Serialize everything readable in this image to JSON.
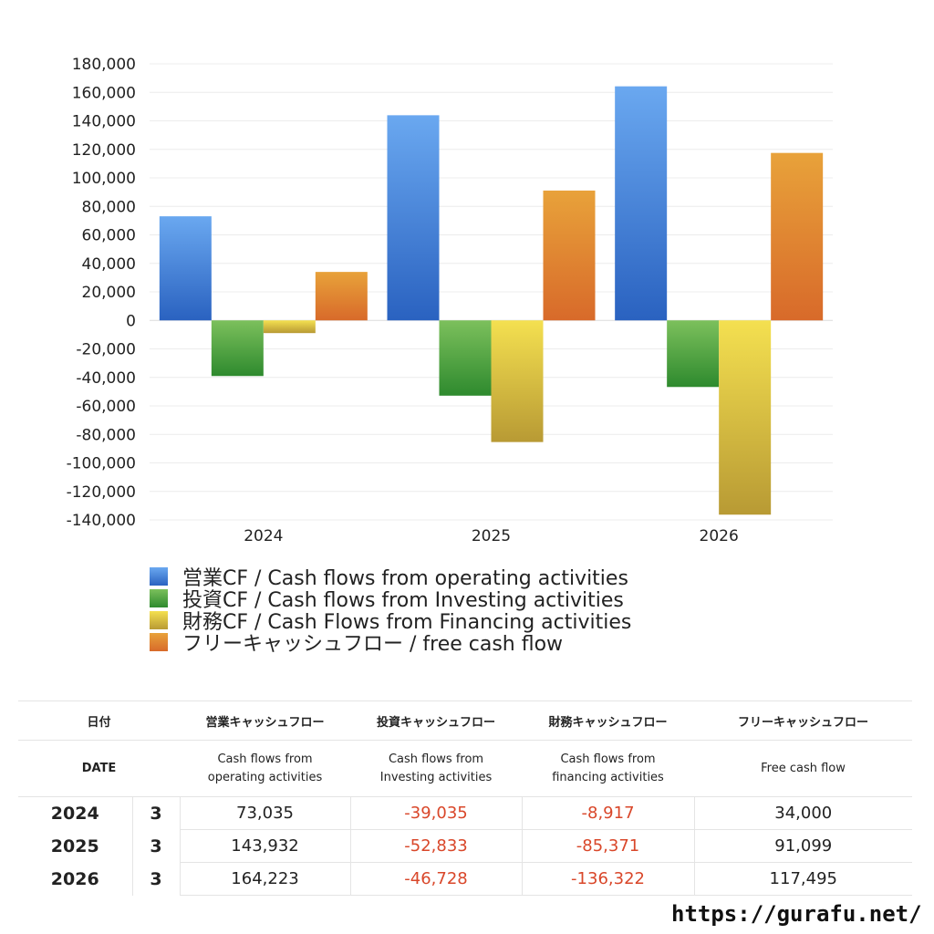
{
  "chart_data": {
    "type": "bar",
    "categories": [
      "2024",
      "2025",
      "2026"
    ],
    "series": [
      {
        "name": "営業CF / Cash flows from operating activities",
        "values": [
          73035,
          143932,
          164223
        ],
        "color_top": "#6aa8f0",
        "color_bottom": "#2a62c0"
      },
      {
        "name": "投資CF / Cash flows from Investing activities",
        "values": [
          -39035,
          -52833,
          -46728
        ],
        "color_top": "#7cc05c",
        "color_bottom": "#2e8a2e"
      },
      {
        "name": "財務CF / Cash Flows from Financing activities",
        "values": [
          -8917,
          -85371,
          -136322
        ],
        "color_top": "#f4e050",
        "color_bottom": "#b89a34"
      },
      {
        "name": "フリーキャッシュフロー / free cash flow",
        "values": [
          34000,
          91099,
          117495
        ],
        "color_top": "#e8a23a",
        "color_bottom": "#d86a2a"
      }
    ],
    "ylim": [
      -140000,
      180000
    ],
    "yticks": [
      "180,000",
      "160,000",
      "140,000",
      "120,000",
      "100,000",
      "80,000",
      "60,000",
      "40,000",
      "20,000",
      "0",
      "-20,000",
      "-40,000",
      "-60,000",
      "-80,000",
      "-100,000",
      "-120,000",
      "-140,000"
    ],
    "ytick_values": [
      180000,
      160000,
      140000,
      120000,
      100000,
      80000,
      60000,
      40000,
      20000,
      0,
      -20000,
      -40000,
      -60000,
      -80000,
      -100000,
      -120000,
      -140000
    ],
    "grid": true,
    "legend_position": "bottom"
  },
  "table": {
    "header_ja": [
      "日付",
      "営業キャッシュフロー",
      "投資キャッシュフロー",
      "財務キャッシュフロー",
      "フリーキャッシュフロー"
    ],
    "header_en": {
      "date": "DATE",
      "operating": [
        "Cash flows from",
        "operating activities"
      ],
      "investing": [
        "Cash flows from",
        "Investing activities"
      ],
      "financing": [
        "Cash flows from",
        "financing activities"
      ],
      "free": "Free cash flow"
    },
    "rows": [
      {
        "year": "2024",
        "month": "3",
        "operating": "73,035",
        "investing": "-39,035",
        "financing": "-8,917",
        "free": "34,000"
      },
      {
        "year": "2025",
        "month": "3",
        "operating": "143,932",
        "investing": "-52,833",
        "financing": "-85,371",
        "free": "91,099"
      },
      {
        "year": "2026",
        "month": "3",
        "operating": "164,223",
        "investing": "-46,728",
        "financing": "-136,322",
        "free": "117,495"
      }
    ],
    "negative_color": "#d9472a"
  },
  "footer": {
    "url": "https://gurafu.net/"
  }
}
